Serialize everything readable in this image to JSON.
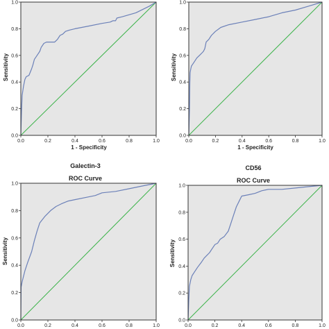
{
  "chart_data": [
    {
      "type": "line",
      "title": "",
      "subtitle": "",
      "xlabel": "1 - Specificity",
      "ylabel": "Sensitivity",
      "xlim": [
        0,
        1
      ],
      "ylim": [
        0,
        1
      ],
      "x_ticks": [
        "0.0",
        "0.2",
        "0.4",
        "0.6",
        "0.8",
        "1.0"
      ],
      "y_ticks": [
        "0.0",
        "0.2",
        "0.4",
        "0.6",
        "0.8",
        "1.0"
      ],
      "grid": false,
      "series": [
        {
          "role": "roc",
          "color": "#6b80b8",
          "x": [
            0,
            0.005,
            0.01,
            0.02,
            0.03,
            0.04,
            0.06,
            0.08,
            0.09,
            0.1,
            0.12,
            0.14,
            0.15,
            0.17,
            0.19,
            0.22,
            0.25,
            0.27,
            0.29,
            0.31,
            0.33,
            0.36,
            0.4,
            0.5,
            0.6,
            0.66,
            0.68,
            0.7,
            0.71,
            0.75,
            0.85,
            0.95,
            1
          ],
          "y": [
            0,
            0.18,
            0.3,
            0.37,
            0.42,
            0.44,
            0.45,
            0.5,
            0.53,
            0.57,
            0.6,
            0.63,
            0.66,
            0.69,
            0.7,
            0.7,
            0.7,
            0.72,
            0.75,
            0.76,
            0.78,
            0.79,
            0.8,
            0.82,
            0.84,
            0.85,
            0.86,
            0.86,
            0.88,
            0.89,
            0.92,
            0.97,
            1
          ]
        },
        {
          "role": "reference",
          "color": "#3cb34a",
          "x": [
            0,
            1
          ],
          "y": [
            0,
            1
          ]
        }
      ]
    },
    {
      "type": "line",
      "title": "",
      "subtitle": "",
      "xlabel": "1 - Specificity",
      "ylabel": "Sensitivity",
      "xlim": [
        0,
        1
      ],
      "ylim": [
        0,
        1
      ],
      "x_ticks": [
        "0.0",
        "0.2",
        "0.4",
        "0.6",
        "0.8",
        "1.0"
      ],
      "y_ticks": [
        "0.0",
        "0.2",
        "0.4",
        "0.6",
        "0.8",
        "1.0"
      ],
      "grid": false,
      "series": [
        {
          "role": "roc",
          "color": "#6b80b8",
          "x": [
            0,
            0.005,
            0.008,
            0.01,
            0.015,
            0.02,
            0.04,
            0.06,
            0.08,
            0.1,
            0.11,
            0.12,
            0.13,
            0.15,
            0.17,
            0.2,
            0.24,
            0.3,
            0.4,
            0.5,
            0.6,
            0.7,
            0.8,
            0.9,
            1
          ],
          "y": [
            0,
            0.2,
            0.4,
            0.47,
            0.5,
            0.52,
            0.55,
            0.58,
            0.6,
            0.62,
            0.63,
            0.65,
            0.7,
            0.72,
            0.75,
            0.78,
            0.81,
            0.83,
            0.85,
            0.87,
            0.89,
            0.92,
            0.94,
            0.97,
            1
          ]
        },
        {
          "role": "reference",
          "color": "#3cb34a",
          "x": [
            0,
            1
          ],
          "y": [
            0,
            1
          ]
        }
      ]
    },
    {
      "type": "line",
      "title": "Galectin-3",
      "subtitle": "ROC Curve",
      "xlabel": "",
      "ylabel": "Sensitivity",
      "xlim": [
        0,
        1
      ],
      "ylim": [
        0,
        1
      ],
      "x_ticks": [
        "0.0",
        "0.2",
        "0.4",
        "0.6",
        "0.8",
        "1.0"
      ],
      "y_ticks": [
        "0.0",
        "0.2",
        "0.4",
        "0.6",
        "0.8",
        "1.0"
      ],
      "grid": false,
      "series": [
        {
          "role": "roc",
          "color": "#6b80b8",
          "x": [
            0,
            0.002,
            0.01,
            0.03,
            0.05,
            0.08,
            0.1,
            0.12,
            0.14,
            0.18,
            0.22,
            0.26,
            0.3,
            0.35,
            0.4,
            0.5,
            0.55,
            0.6,
            0.7,
            0.8,
            0.9,
            1
          ],
          "y": [
            0,
            0.24,
            0.28,
            0.36,
            0.42,
            0.5,
            0.58,
            0.65,
            0.71,
            0.76,
            0.8,
            0.83,
            0.85,
            0.87,
            0.88,
            0.9,
            0.91,
            0.93,
            0.94,
            0.96,
            0.98,
            1
          ]
        },
        {
          "role": "reference",
          "color": "#3cb34a",
          "x": [
            0,
            1
          ],
          "y": [
            0,
            1
          ]
        }
      ]
    },
    {
      "type": "line",
      "title": "CD56",
      "subtitle": "ROC Curve",
      "xlabel": "",
      "ylabel": "Sensitivity",
      "xlim": [
        0,
        1
      ],
      "ylim": [
        0,
        1
      ],
      "x_ticks": [
        "0.0",
        "0.2",
        "0.4",
        "0.6",
        "0.8",
        "1.0"
      ],
      "y_ticks": [
        "0.0",
        "0.2",
        "0.4",
        "0.6",
        "0.8",
        "1.0"
      ],
      "grid": false,
      "series": [
        {
          "role": "roc",
          "color": "#6b80b8",
          "x": [
            0,
            0.005,
            0.01,
            0.02,
            0.03,
            0.05,
            0.07,
            0.1,
            0.12,
            0.14,
            0.16,
            0.18,
            0.2,
            0.22,
            0.24,
            0.27,
            0.3,
            0.32,
            0.34,
            0.36,
            0.38,
            0.4,
            0.45,
            0.5,
            0.55,
            0.6,
            0.7,
            0.8,
            0.9,
            1
          ],
          "y": [
            0,
            0.15,
            0.25,
            0.3,
            0.33,
            0.36,
            0.39,
            0.43,
            0.46,
            0.48,
            0.5,
            0.53,
            0.56,
            0.57,
            0.6,
            0.62,
            0.66,
            0.72,
            0.78,
            0.84,
            0.88,
            0.92,
            0.93,
            0.94,
            0.96,
            0.97,
            0.97,
            0.98,
            0.99,
            1
          ]
        },
        {
          "role": "reference",
          "color": "#3cb34a",
          "x": [
            0,
            1
          ],
          "y": [
            0,
            1
          ]
        }
      ]
    }
  ],
  "style": {
    "plot_bg": "#e6e6e6",
    "frame": "#333333"
  }
}
